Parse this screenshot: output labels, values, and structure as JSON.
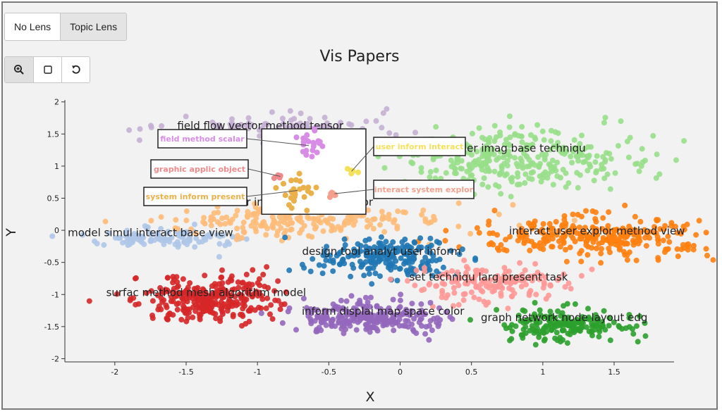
{
  "lens_buttons": [
    {
      "label": "No Lens",
      "active": false
    },
    {
      "label": "Topic Lens",
      "active": true
    }
  ],
  "tools": [
    {
      "name": "zoom-icon",
      "active": true
    },
    {
      "name": "select-box-icon",
      "active": false
    },
    {
      "name": "reset-icon",
      "active": false
    }
  ],
  "chart_data": {
    "type": "scatter",
    "title": "Vis Papers",
    "xlabel": "X",
    "ylabel": "Y",
    "xlim": [
      -2.35,
      1.92
    ],
    "ylim": [
      -2.05,
      2.03
    ],
    "xticks": [
      -2,
      -1.5,
      -1,
      -0.5,
      0,
      0.5,
      1,
      1.5
    ],
    "yticks": [
      2,
      1.5,
      1,
      0.5,
      0,
      -0.5,
      -1,
      -1.5,
      -2
    ],
    "grid": false,
    "clusters": [
      {
        "label": "field flow vector method tensor",
        "color": "#c5b0d5",
        "center": [
          -0.85,
          1.58
        ],
        "spread": [
          0.42,
          0.1
        ],
        "count": 110,
        "label_pos": [
          -0.98,
          1.63
        ]
      },
      {
        "label": "render imag base techniqu",
        "color": "#98df8a",
        "center": [
          0.85,
          1.1
        ],
        "spread": [
          0.45,
          0.24
        ],
        "count": 330,
        "label_pos": [
          0.8,
          1.28
        ]
      },
      {
        "label": "model simul interact base view",
        "color": "#aec7e8",
        "center": [
          -1.65,
          -0.12
        ],
        "spread": [
          0.28,
          0.08
        ],
        "count": 110,
        "label_pos": [
          -1.75,
          -0.04
        ]
      },
      {
        "label": "user interact system explor",
        "color": "#ffbb78",
        "center": [
          -0.65,
          0.15
        ],
        "spread": [
          0.48,
          0.14
        ],
        "count": 200,
        "label_pos": [
          -0.7,
          0.44
        ]
      },
      {
        "label": "interact user explor method view",
        "color": "#ff7f0e",
        "center": [
          1.36,
          -0.1
        ],
        "spread": [
          0.42,
          0.16
        ],
        "count": 300,
        "label_pos": [
          1.38,
          -0.01
        ]
      },
      {
        "label": "design tool analyt user inform",
        "color": "#1f77b4",
        "center": [
          -0.1,
          -0.43
        ],
        "spread": [
          0.23,
          0.16
        ],
        "count": 210,
        "label_pos": [
          -0.13,
          -0.33
        ]
      },
      {
        "label": "set techniqu larg present task",
        "color": "#ff9896",
        "center": [
          0.62,
          -0.84
        ],
        "spread": [
          0.28,
          0.15
        ],
        "count": 160,
        "label_pos": [
          0.62,
          -0.73
        ]
      },
      {
        "label": "surfac method mesh algorithm model",
        "color": "#d62728",
        "center": [
          -1.32,
          -1.08
        ],
        "spread": [
          0.24,
          0.17
        ],
        "count": 300,
        "label_pos": [
          -1.36,
          -0.97
        ]
      },
      {
        "label": "inform displai map space color",
        "color": "#9467bd",
        "center": [
          -0.23,
          -1.37
        ],
        "spread": [
          0.25,
          0.12
        ],
        "count": 240,
        "label_pos": [
          -0.12,
          -1.26
        ]
      },
      {
        "label": "graph network node layout edg",
        "color": "#2ca02c",
        "center": [
          1.18,
          -1.48
        ],
        "spread": [
          0.24,
          0.13
        ],
        "count": 190,
        "label_pos": [
          1.15,
          -1.36
        ]
      }
    ],
    "lens": {
      "x_range": [
        -0.97,
        -0.24
      ],
      "y_range": [
        0.25,
        1.58
      ],
      "items": [
        {
          "label": "field method scalar",
          "color": "#d78ce6",
          "points_center": [
            -0.64,
            1.32
          ],
          "points_spread": [
            0.06,
            0.09
          ],
          "count": 22
        },
        {
          "label": "graphic applic object",
          "color": "#f18a8a",
          "points_center": [
            -0.84,
            0.84
          ],
          "points_spread": [
            0.04,
            0.02
          ],
          "count": 7
        },
        {
          "label": "system inform present",
          "color": "#eab04a",
          "points_center": [
            -0.72,
            0.62
          ],
          "points_spread": [
            0.05,
            0.11
          ],
          "count": 26
        },
        {
          "label": "user inform interact",
          "color": "#f5e05a",
          "points_center": [
            -0.34,
            0.92
          ],
          "points_spread": [
            0.02,
            0.03
          ],
          "count": 5
        },
        {
          "label": "interact system explor",
          "color": "#f5a08c",
          "points_center": [
            -0.46,
            0.57
          ],
          "points_spread": [
            0.03,
            0.03
          ],
          "count": 7
        }
      ]
    }
  }
}
